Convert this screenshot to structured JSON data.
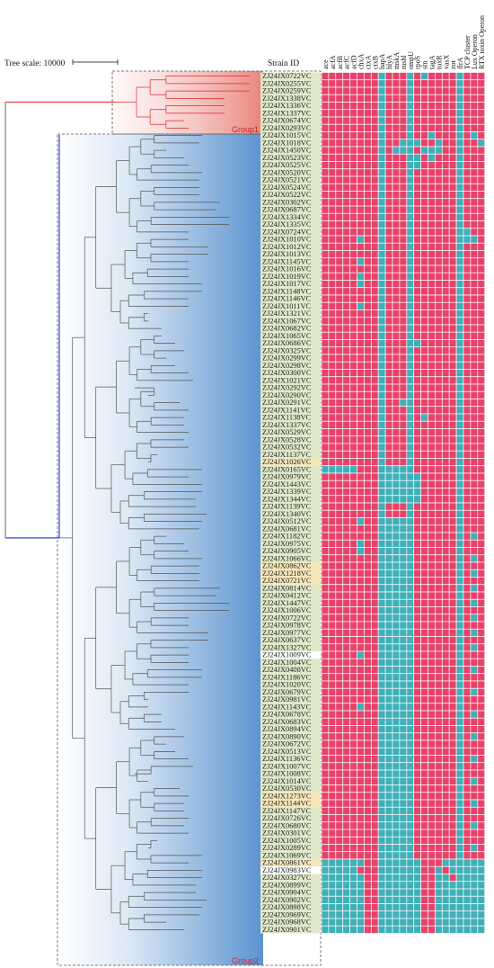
{
  "tree_scale": {
    "label": "Tree scale: 10000"
  },
  "strain_header": "Strain ID",
  "groups": [
    {
      "name": "Group1",
      "color": "#e0282e"
    },
    {
      "name": "Group2",
      "color": "#2233cc"
    }
  ],
  "colors": {
    "present": "#e8426a",
    "absent": "#3fb0b8",
    "strain_bg_default": "#dfe8c8",
    "strain_bg_highlight": "#f6e6b8",
    "strain_text_red": "#e0282e"
  },
  "genes": [
    "ace",
    "acfA",
    "acfB",
    "acfC",
    "acfD",
    "chxA",
    "ctxA",
    "ctxB",
    "hapA",
    "hlyA",
    "mskA",
    "mshl",
    "ompU",
    "rpoS",
    "stn",
    "tagA",
    "toxR",
    "vasX",
    "zot",
    "flrA",
    "TCP cluster",
    "Lux Operon",
    "RTX toxin Operon"
  ],
  "strains": [
    {
      "id": "ZJ24JX0722VC",
      "g": 1,
      "hl": 0
    },
    {
      "id": "ZJ24JX0255VC",
      "g": 1,
      "hl": 0
    },
    {
      "id": "ZJ24JX0259VC",
      "g": 1,
      "hl": 0
    },
    {
      "id": "ZJ24JX1338VC",
      "g": 1,
      "hl": 0
    },
    {
      "id": "ZJ24JX1336VC",
      "g": 1,
      "hl": 0
    },
    {
      "id": "ZJ24JX1337VC",
      "g": 1,
      "hl": 0
    },
    {
      "id": "ZJ24JX0674VC",
      "g": 1,
      "hl": 0
    },
    {
      "id": "ZJ24JX0293VC",
      "g": 1,
      "hl": 0
    },
    {
      "id": "ZJ24JX1015VC",
      "g": 2,
      "hl": 0
    },
    {
      "id": "ZJ24JX1018VC",
      "g": 2,
      "hl": 0
    },
    {
      "id": "ZJ24JX1450VC",
      "g": 2,
      "hl": 0
    },
    {
      "id": "ZJ24JX0523VC",
      "g": 2,
      "hl": 0
    },
    {
      "id": "ZJ24JX0525VC",
      "g": 2,
      "hl": 0
    },
    {
      "id": "ZJ24JX0520VC",
      "g": 2,
      "hl": 0
    },
    {
      "id": "ZJ24JX0521VC",
      "g": 2,
      "hl": 0
    },
    {
      "id": "ZJ24JX0524VC",
      "g": 2,
      "hl": 0
    },
    {
      "id": "ZJ24JX0522VC",
      "g": 2,
      "hl": 0
    },
    {
      "id": "ZJ24JX0302VC",
      "g": 2,
      "hl": 0
    },
    {
      "id": "ZJ24JX0687VC",
      "g": 2,
      "hl": 0
    },
    {
      "id": "ZJ24JX1334VC",
      "g": 2,
      "hl": 0
    },
    {
      "id": "ZJ24JX1335VC",
      "g": 2,
      "hl": 0
    },
    {
      "id": "ZJ24JX0724VC",
      "g": 2,
      "hl": 0
    },
    {
      "id": "ZJ24JX1010VC",
      "g": 2,
      "hl": 0
    },
    {
      "id": "ZJ24JX1012VC",
      "g": 2,
      "hl": 0
    },
    {
      "id": "ZJ24JX1013VC",
      "g": 2,
      "hl": 0
    },
    {
      "id": "ZJ24JX1145VC",
      "g": 2,
      "hl": 0
    },
    {
      "id": "ZJ24JX1016VC",
      "g": 2,
      "hl": 0
    },
    {
      "id": "ZJ24JX1019VC",
      "g": 2,
      "hl": 0
    },
    {
      "id": "ZJ24JX1017VC",
      "g": 2,
      "hl": 0
    },
    {
      "id": "ZJ24JX1148VC",
      "g": 2,
      "hl": 0
    },
    {
      "id": "ZJ24JX1146VC",
      "g": 2,
      "hl": 0
    },
    {
      "id": "ZJ24JX1011VC",
      "g": 2,
      "hl": 0
    },
    {
      "id": "ZJ24JX1321VC",
      "g": 2,
      "hl": 0
    },
    {
      "id": "ZJ24JX1067VC",
      "g": 2,
      "hl": 0
    },
    {
      "id": "ZJ24JX0682VC",
      "g": 2,
      "hl": 0
    },
    {
      "id": "ZJ24JX1065VC",
      "g": 2,
      "hl": 0
    },
    {
      "id": "ZJ24JX0686VC",
      "g": 2,
      "hl": 0
    },
    {
      "id": "ZJ24JX0325VC",
      "g": 2,
      "hl": 0
    },
    {
      "id": "ZJ24JX0299VC",
      "g": 2,
      "hl": 0
    },
    {
      "id": "ZJ24JX0298VC",
      "g": 2,
      "hl": 0
    },
    {
      "id": "ZJ24JX0300VC",
      "g": 2,
      "hl": 0
    },
    {
      "id": "ZJ24JX1021VC",
      "g": 2,
      "hl": 0
    },
    {
      "id": "ZJ24JX0292VC",
      "g": 2,
      "hl": 0
    },
    {
      "id": "ZJ24JX0290VC",
      "g": 2,
      "hl": 0
    },
    {
      "id": "ZJ24JX0291VC",
      "g": 2,
      "hl": 0
    },
    {
      "id": "ZJ24JX1141VC",
      "g": 2,
      "hl": 0
    },
    {
      "id": "ZJ24JX1138VC",
      "g": 2,
      "hl": 0
    },
    {
      "id": "ZJ24JX1337VC",
      "g": 2,
      "hl": 0
    },
    {
      "id": "ZJ24JX0529VC",
      "g": 2,
      "hl": 0
    },
    {
      "id": "ZJ24JX0528VC",
      "g": 2,
      "hl": 0
    },
    {
      "id": "ZJ24JX0532VC",
      "g": 2,
      "hl": 0
    },
    {
      "id": "ZJ24JX1137VC",
      "g": 2,
      "hl": 0
    },
    {
      "id": "ZJ24JX1026VC",
      "g": 2,
      "hl": 1
    },
    {
      "id": "ZJ24JX0165VC",
      "g": 2,
      "hl": 0
    },
    {
      "id": "ZJ24JX0979VC",
      "g": 2,
      "hl": 0
    },
    {
      "id": "ZJ24JX1443VC",
      "g": 2,
      "hl": 0
    },
    {
      "id": "ZJ24JX1339VC",
      "g": 2,
      "hl": 0
    },
    {
      "id": "ZJ24JX1344VC",
      "g": 2,
      "hl": 0
    },
    {
      "id": "ZJ24JX1139VC",
      "g": 2,
      "hl": 0
    },
    {
      "id": "ZJ24JX1340VC",
      "g": 2,
      "hl": 0
    },
    {
      "id": "ZJ24JX0512VC",
      "g": 2,
      "hl": 0
    },
    {
      "id": "ZJ24JX0681VC",
      "g": 2,
      "hl": 0
    },
    {
      "id": "ZJ24JX1182VC",
      "g": 2,
      "hl": 0
    },
    {
      "id": "ZJ24JX0975VC",
      "g": 2,
      "hl": 0
    },
    {
      "id": "ZJ24JX0905VC",
      "g": 2,
      "hl": 0
    },
    {
      "id": "ZJ24JX1066VC",
      "g": 2,
      "hl": 0
    },
    {
      "id": "ZJ24JX0862VC",
      "g": 2,
      "hl": 1
    },
    {
      "id": "ZJ24JX1218VC",
      "g": 2,
      "hl": 1
    },
    {
      "id": "ZJ24JX0721VC",
      "g": 2,
      "hl": 1
    },
    {
      "id": "ZJ24JX0814VC",
      "g": 2,
      "hl": 0
    },
    {
      "id": "ZJ24JX0412VC",
      "g": 2,
      "hl": 0
    },
    {
      "id": "ZJ24JX1447VC",
      "g": 2,
      "hl": 0
    },
    {
      "id": "ZJ24JX1006VC",
      "g": 2,
      "hl": 0
    },
    {
      "id": "ZJ24JX0722VC",
      "g": 2,
      "hl": 0
    },
    {
      "id": "ZJ24JX0978VC",
      "g": 2,
      "hl": 0
    },
    {
      "id": "ZJ24JX0977VC",
      "g": 2,
      "hl": 0
    },
    {
      "id": "ZJ24JX0637VC",
      "g": 2,
      "hl": 0
    },
    {
      "id": "ZJ24JX1327VC",
      "g": 2,
      "hl": 0
    },
    {
      "id": "ZJ24JX1009VC",
      "g": 2,
      "hl": 2
    },
    {
      "id": "ZJ24JX1004VC",
      "g": 2,
      "hl": 0
    },
    {
      "id": "ZJ24JX0408VC",
      "g": 2,
      "hl": 0
    },
    {
      "id": "ZJ24JX1186VC",
      "g": 2,
      "hl": 0
    },
    {
      "id": "ZJ24JX1020VC",
      "g": 2,
      "hl": 0
    },
    {
      "id": "ZJ24JX0679VC",
      "g": 2,
      "hl": 0
    },
    {
      "id": "ZJ24JX0981VC",
      "g": 2,
      "hl": 0
    },
    {
      "id": "ZJ24JX1143VC",
      "g": 2,
      "hl": 0
    },
    {
      "id": "ZJ24JX0678VC",
      "g": 2,
      "hl": 0
    },
    {
      "id": "ZJ24JX0683VC",
      "g": 2,
      "hl": 0
    },
    {
      "id": "ZJ24JX0894VC",
      "g": 2,
      "hl": 0
    },
    {
      "id": "ZJ24JX0890VC",
      "g": 2,
      "hl": 0
    },
    {
      "id": "ZJ24JX0672VC",
      "g": 2,
      "hl": 0
    },
    {
      "id": "ZJ24JX0513VC",
      "g": 2,
      "hl": 0
    },
    {
      "id": "ZJ24JX1136VC",
      "g": 2,
      "hl": 0
    },
    {
      "id": "ZJ24JX1007VC",
      "g": 2,
      "hl": 0
    },
    {
      "id": "ZJ24JX1008VC",
      "g": 2,
      "hl": 0
    },
    {
      "id": "ZJ24JX1014VC",
      "g": 2,
      "hl": 0
    },
    {
      "id": "ZJ24JX0530VC",
      "g": 2,
      "hl": 0
    },
    {
      "id": "ZJ24JX1273VC",
      "g": 2,
      "hl": 1
    },
    {
      "id": "ZJ24JX1144VC",
      "g": 2,
      "hl": 1
    },
    {
      "id": "ZJ24JX1147VC",
      "g": 2,
      "hl": 0
    },
    {
      "id": "ZJ24JX0726VC",
      "g": 2,
      "hl": 0
    },
    {
      "id": "ZJ24JX0680VC",
      "g": 2,
      "hl": 0
    },
    {
      "id": "ZJ24JX0301VC",
      "g": 2,
      "hl": 0
    },
    {
      "id": "ZJ24JX1005VC",
      "g": 2,
      "hl": 0
    },
    {
      "id": "ZJ24JX0289VC",
      "g": 2,
      "hl": 0
    },
    {
      "id": "ZJ24JX1069VC",
      "g": 2,
      "hl": 0
    },
    {
      "id": "ZJ24JX0861VC",
      "g": 2,
      "hl": 1
    },
    {
      "id": "ZJ24JX0983VC",
      "g": 2,
      "hl": 3
    },
    {
      "id": "ZJ24JX0327VC",
      "g": 2,
      "hl": 0
    },
    {
      "id": "ZJ24JX0899VC",
      "g": 2,
      "hl": 0
    },
    {
      "id": "ZJ24JX0904VC",
      "g": 2,
      "hl": 0
    },
    {
      "id": "ZJ24JX0902VC",
      "g": 2,
      "hl": 0
    },
    {
      "id": "ZJ24JX0898VC",
      "g": 2,
      "hl": 0
    },
    {
      "id": "ZJ24JX0969VC",
      "g": 2,
      "hl": 0
    },
    {
      "id": "ZJ24JX0968VC",
      "g": 2,
      "hl": 0
    },
    {
      "id": "ZJ24JX0901VC",
      "g": 2,
      "hl": 0
    }
  ],
  "absent_cells": {
    "all_rows": [
      8,
      12,
      19
    ],
    "rows": {
      "0": [
        14
      ],
      "3": [
        8
      ],
      "8": [
        15,
        21
      ],
      "9": [
        11,
        13,
        16,
        22
      ],
      "10": [
        10,
        11,
        14,
        15,
        16
      ],
      "11": [
        13,
        15
      ],
      "12": [
        13
      ],
      "21": [
        20
      ],
      "22": [
        5,
        20,
        21
      ],
      "25": [
        5
      ],
      "27": [
        5
      ],
      "28": [
        5
      ],
      "31": [
        5
      ],
      "36": [
        13
      ],
      "44": [
        11
      ],
      "46": [
        14
      ],
      "53": [
        0,
        1,
        2,
        3,
        4,
        9,
        10,
        11
      ],
      "54": [
        9,
        10,
        11,
        13
      ],
      "55": [
        9,
        10,
        11,
        13
      ],
      "56": [
        9,
        10,
        11,
        13
      ],
      "57": [
        9,
        10,
        11,
        13
      ],
      "60": [
        5,
        9,
        10,
        11
      ],
      "61": [
        9,
        10,
        11
      ],
      "62": [
        9,
        10,
        11,
        21
      ],
      "63": [
        5,
        9,
        10,
        11
      ],
      "64": [
        5,
        9,
        10,
        11
      ],
      "65": [
        9,
        10,
        11,
        21
      ],
      "66": [
        9,
        10,
        11
      ],
      "67": [
        9,
        10,
        11,
        21
      ],
      "68": [
        9,
        10,
        11
      ],
      "69": [
        9,
        10,
        11,
        21
      ],
      "70": [
        9,
        10,
        11
      ],
      "71": [
        9,
        10,
        11,
        21
      ],
      "72": [
        9,
        10,
        11
      ],
      "73": [
        9,
        10,
        11,
        21
      ],
      "74": [
        9,
        10,
        11
      ],
      "75": [
        9,
        10,
        11,
        21
      ],
      "76": [
        9,
        10,
        11
      ],
      "77": [
        9,
        10,
        11,
        21
      ],
      "78": [
        5,
        9,
        10,
        11
      ],
      "79": [
        9,
        10,
        11
      ],
      "80": [
        9,
        10,
        11,
        21
      ],
      "81": [
        9,
        10,
        11
      ],
      "82": [
        9,
        10,
        11
      ],
      "83": [
        9,
        10,
        11,
        21
      ],
      "84": [
        9,
        10,
        11
      ],
      "85": [
        5,
        9,
        10,
        11
      ],
      "86": [
        9,
        10,
        11,
        21
      ],
      "87": [
        9,
        10,
        11
      ],
      "88": [
        9,
        10,
        11
      ],
      "89": [
        9,
        10,
        11,
        21
      ],
      "90": [
        9,
        10,
        11
      ],
      "91": [
        9,
        10,
        11
      ],
      "92": [
        9,
        10,
        11,
        21
      ],
      "93": [
        9,
        10,
        11
      ],
      "94": [
        9,
        10,
        11
      ],
      "95": [
        9,
        10,
        11,
        21
      ],
      "96": [
        9,
        10,
        11
      ],
      "97": [
        9,
        10,
        11
      ],
      "98": [
        9,
        10,
        11,
        21
      ],
      "99": [
        9,
        10,
        11
      ],
      "100": [
        9,
        10,
        11
      ],
      "101": [
        9,
        10,
        11,
        21
      ],
      "102": [
        9,
        10,
        11
      ],
      "103": [
        9,
        10,
        11
      ],
      "104": [
        9,
        10,
        11,
        21
      ],
      "105": [
        9,
        10,
        11
      ],
      "106": [
        0,
        1,
        2,
        3,
        4,
        5,
        9,
        10,
        11,
        13,
        17,
        18,
        19,
        20,
        21,
        22
      ],
      "107": [
        0,
        1,
        2,
        3,
        4,
        9,
        10,
        11,
        13,
        16,
        18,
        19,
        20,
        21,
        22
      ],
      "108": [
        0,
        1,
        2,
        3,
        4,
        5,
        9,
        10,
        11,
        13,
        16,
        17,
        19,
        20,
        21,
        22
      ],
      "109": [
        0,
        1,
        2,
        3,
        4,
        5,
        9,
        10,
        11,
        13,
        16,
        17,
        18,
        19,
        20,
        21,
        22
      ],
      "110": [
        0,
        1,
        2,
        3,
        4,
        5,
        9,
        10,
        11,
        13,
        16,
        17,
        18,
        19,
        20,
        21,
        22
      ],
      "111": [
        0,
        1,
        2,
        3,
        4,
        5,
        9,
        10,
        11,
        13,
        16,
        17,
        18,
        19,
        20,
        21,
        22
      ],
      "112": [
        0,
        1,
        2,
        3,
        4,
        5,
        9,
        10,
        11,
        13,
        16,
        17,
        18,
        19,
        20,
        21,
        22
      ],
      "113": [
        0,
        1,
        2,
        3,
        4,
        5,
        9,
        10,
        11,
        13,
        16,
        17,
        18,
        19,
        20,
        21,
        22
      ],
      "114": [
        0,
        1,
        2,
        3,
        4,
        5,
        9,
        10,
        11,
        13,
        16,
        17,
        18,
        19,
        20,
        21,
        22
      ],
      "115": [
        0,
        1,
        2,
        3,
        4,
        5,
        9,
        10,
        11,
        13,
        16,
        17,
        18,
        19,
        20,
        21,
        22
      ]
    }
  }
}
